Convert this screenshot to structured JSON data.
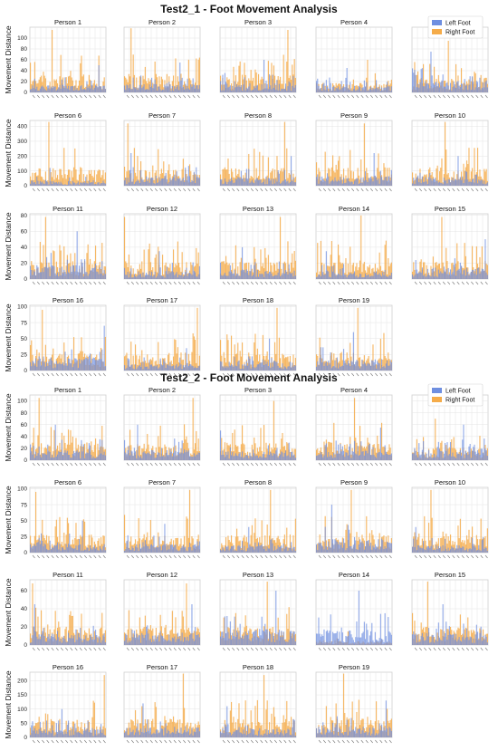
{
  "colors": {
    "left": "#6f8fe0",
    "right": "#f5ac4a",
    "grid": "#e4e4e4",
    "frame": "#cfcfcf"
  },
  "chart_data": [
    {
      "type": "bar",
      "title": "Test2_1 - Foot Movement Analysis",
      "ylabel": "Movement Distance",
      "legend": {
        "position": "top-right",
        "entries": [
          "Left Foot",
          "Right Foot"
        ]
      },
      "grid": true,
      "panels": [
        {
          "title": "Person 1",
          "ylim": [
            0,
            120
          ],
          "yticks": [
            0,
            20,
            40,
            60,
            80,
            100
          ],
          "bars": 70,
          "left_peak": 50,
          "right_peak": 115,
          "seed": 11
        },
        {
          "title": "Person 2",
          "ylim": [
            0,
            120
          ],
          "yticks": [],
          "bars": 70,
          "left_peak": 55,
          "right_peak": 118,
          "seed": 12
        },
        {
          "title": "Person 3",
          "ylim": [
            0,
            120
          ],
          "yticks": [],
          "bars": 70,
          "left_peak": 60,
          "right_peak": 115,
          "seed": 13
        },
        {
          "title": "Person 4",
          "ylim": [
            0,
            120
          ],
          "yticks": [],
          "bars": 70,
          "left_peak": 45,
          "right_peak": 60,
          "seed": 14
        },
        {
          "title": "Person 5",
          "ylim": [
            0,
            120
          ],
          "yticks": [],
          "bars": 70,
          "left_peak": 75,
          "right_peak": 95,
          "seed": 15
        },
        {
          "title": "Person 6",
          "ylim": [
            0,
            440
          ],
          "yticks": [
            0,
            100,
            200,
            300,
            400
          ],
          "bars": 70,
          "left_peak": 120,
          "right_peak": 430,
          "seed": 21
        },
        {
          "title": "Person 7",
          "ylim": [
            0,
            440
          ],
          "yticks": [],
          "bars": 70,
          "left_peak": 220,
          "right_peak": 420,
          "seed": 22
        },
        {
          "title": "Person 8",
          "ylim": [
            0,
            440
          ],
          "yticks": [],
          "bars": 70,
          "left_peak": 200,
          "right_peak": 430,
          "seed": 23
        },
        {
          "title": "Person 9",
          "ylim": [
            0,
            440
          ],
          "yticks": [],
          "bars": 70,
          "left_peak": 220,
          "right_peak": 420,
          "seed": 24
        },
        {
          "title": "Person 10",
          "ylim": [
            0,
            440
          ],
          "yticks": [],
          "bars": 70,
          "left_peak": 200,
          "right_peak": 430,
          "seed": 25
        },
        {
          "title": "Person 11",
          "ylim": [
            0,
            82
          ],
          "yticks": [
            0,
            20,
            40,
            60,
            80
          ],
          "bars": 70,
          "left_peak": 60,
          "right_peak": 78,
          "seed": 31
        },
        {
          "title": "Person 12",
          "ylim": [
            0,
            82
          ],
          "yticks": [],
          "bars": 70,
          "left_peak": 35,
          "right_peak": 78,
          "seed": 32
        },
        {
          "title": "Person 13",
          "ylim": [
            0,
            82
          ],
          "yticks": [],
          "bars": 70,
          "left_peak": 40,
          "right_peak": 78,
          "seed": 33
        },
        {
          "title": "Person 14",
          "ylim": [
            0,
            82
          ],
          "yticks": [],
          "bars": 70,
          "left_peak": 35,
          "right_peak": 80,
          "seed": 34
        },
        {
          "title": "Person 15",
          "ylim": [
            0,
            82
          ],
          "yticks": [],
          "bars": 70,
          "left_peak": 50,
          "right_peak": 78,
          "seed": 35
        },
        {
          "title": "Person 16",
          "ylim": [
            0,
            102
          ],
          "yticks": [
            0,
            25,
            50,
            75,
            100
          ],
          "bars": 70,
          "left_peak": 70,
          "right_peak": 95,
          "seed": 41
        },
        {
          "title": "Person 17",
          "ylim": [
            0,
            102
          ],
          "yticks": [],
          "bars": 70,
          "left_peak": 35,
          "right_peak": 98,
          "seed": 42
        },
        {
          "title": "Person 18",
          "ylim": [
            0,
            102
          ],
          "yticks": [],
          "bars": 70,
          "left_peak": 50,
          "right_peak": 98,
          "seed": 43
        },
        {
          "title": "Person 19",
          "ylim": [
            0,
            102
          ],
          "yticks": [],
          "bars": 70,
          "left_peak": 60,
          "right_peak": 98,
          "seed": 44
        }
      ]
    },
    {
      "type": "bar",
      "title": "Test2_2 - Foot Movement Analysis",
      "ylabel": "Movement Distance",
      "legend": {
        "position": "top-right",
        "entries": [
          "Left Foot",
          "Right Foot"
        ]
      },
      "grid": true,
      "panels": [
        {
          "title": "Person 1",
          "ylim": [
            0,
            110
          ],
          "yticks": [
            0,
            20,
            40,
            60,
            80,
            100
          ],
          "bars": 70,
          "left_peak": 60,
          "right_peak": 105,
          "seed": 51
        },
        {
          "title": "Person 2",
          "ylim": [
            0,
            110
          ],
          "yticks": [],
          "bars": 70,
          "left_peak": 60,
          "right_peak": 105,
          "seed": 52
        },
        {
          "title": "Person 3",
          "ylim": [
            0,
            110
          ],
          "yticks": [],
          "bars": 70,
          "left_peak": 50,
          "right_peak": 100,
          "seed": 53
        },
        {
          "title": "Person 4",
          "ylim": [
            0,
            110
          ],
          "yticks": [],
          "bars": 70,
          "left_peak": 55,
          "right_peak": 105,
          "seed": 54
        },
        {
          "title": "Person 5",
          "ylim": [
            0,
            110
          ],
          "yticks": [],
          "bars": 70,
          "left_peak": 60,
          "right_peak": 70,
          "seed": 55
        },
        {
          "title": "Person 6",
          "ylim": [
            0,
            102
          ],
          "yticks": [
            0,
            25,
            50,
            75,
            100
          ],
          "bars": 70,
          "left_peak": 50,
          "right_peak": 95,
          "seed": 61
        },
        {
          "title": "Person 7",
          "ylim": [
            0,
            102
          ],
          "yticks": [],
          "bars": 70,
          "left_peak": 45,
          "right_peak": 98,
          "seed": 62
        },
        {
          "title": "Person 8",
          "ylim": [
            0,
            102
          ],
          "yticks": [],
          "bars": 70,
          "left_peak": 40,
          "right_peak": 98,
          "seed": 63
        },
        {
          "title": "Person 9",
          "ylim": [
            0,
            102
          ],
          "yticks": [],
          "bars": 70,
          "left_peak": 75,
          "right_peak": 98,
          "seed": 64
        },
        {
          "title": "Person 10",
          "ylim": [
            0,
            102
          ],
          "yticks": [],
          "bars": 70,
          "left_peak": 40,
          "right_peak": 98,
          "seed": 65
        },
        {
          "title": "Person 11",
          "ylim": [
            0,
            72
          ],
          "yticks": [
            0,
            20,
            40,
            60
          ],
          "bars": 70,
          "left_peak": 45,
          "right_peak": 68,
          "seed": 71
        },
        {
          "title": "Person 12",
          "ylim": [
            0,
            72
          ],
          "yticks": [],
          "bars": 70,
          "left_peak": 45,
          "right_peak": 68,
          "seed": 72
        },
        {
          "title": "Person 13",
          "ylim": [
            0,
            72
          ],
          "yticks": [],
          "bars": 70,
          "left_peak": 60,
          "right_peak": 70,
          "seed": 73
        },
        {
          "title": "Person 14",
          "ylim": [
            0,
            72
          ],
          "yticks": [],
          "bars": 70,
          "left_peak": 60,
          "right_peak": 15,
          "seed": 74
        },
        {
          "title": "Person 15",
          "ylim": [
            0,
            72
          ],
          "yticks": [],
          "bars": 70,
          "left_peak": 45,
          "right_peak": 70,
          "seed": 75
        },
        {
          "title": "Person 16",
          "ylim": [
            0,
            230
          ],
          "yticks": [
            0,
            50,
            100,
            150,
            200
          ],
          "bars": 70,
          "left_peak": 100,
          "right_peak": 220,
          "seed": 81
        },
        {
          "title": "Person 17",
          "ylim": [
            0,
            230
          ],
          "yticks": [],
          "bars": 70,
          "left_peak": 120,
          "right_peak": 225,
          "seed": 82
        },
        {
          "title": "Person 18",
          "ylim": [
            0,
            230
          ],
          "yticks": [],
          "bars": 70,
          "left_peak": 110,
          "right_peak": 220,
          "seed": 83
        },
        {
          "title": "Person 19",
          "ylim": [
            0,
            230
          ],
          "yticks": [],
          "bars": 70,
          "left_peak": 130,
          "right_peak": 225,
          "seed": 84
        }
      ]
    }
  ]
}
